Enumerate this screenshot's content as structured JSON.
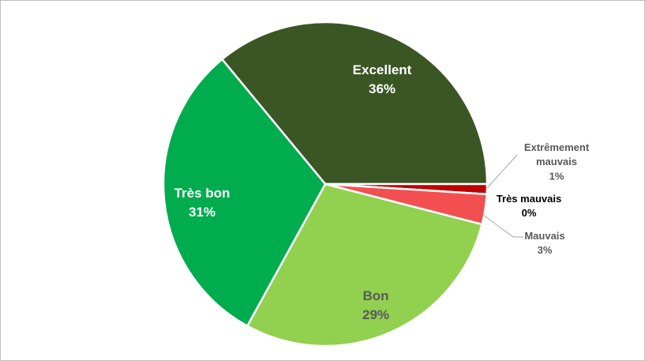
{
  "chart_data": {
    "type": "pie",
    "categories": [
      "Excellent",
      "Extrêmement mauvais",
      "Très mauvais",
      "Mauvais",
      "Bon",
      "Très bon"
    ],
    "values": [
      36,
      1,
      0,
      3,
      29,
      31
    ],
    "value_labels": [
      "36%",
      "1%",
      "0%",
      "3%",
      "29%",
      "31%"
    ],
    "colors": [
      "#3a5624",
      "#c00000",
      "#a50000",
      "#f25050",
      "#92d050",
      "#00ac4e"
    ]
  }
}
